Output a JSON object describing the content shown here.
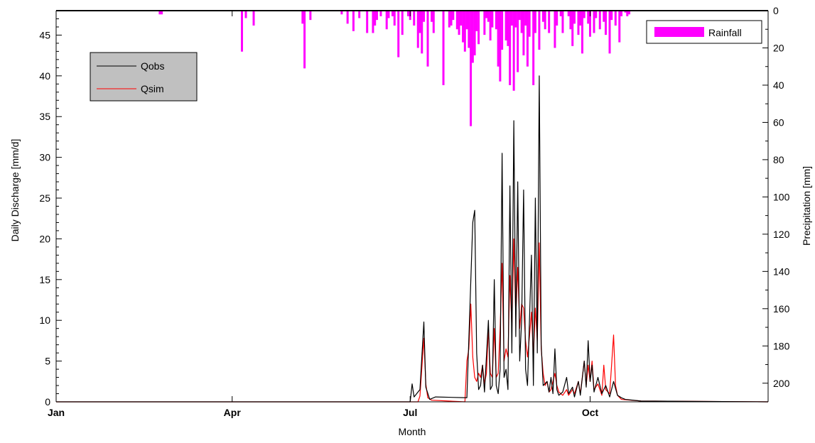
{
  "chart_data": {
    "type": "line",
    "xlabel": "Month",
    "ylabel_left": "Daily Discharge [mm/d]",
    "ylabel_right": "Precipitation [mm]",
    "x_range_days": [
      1,
      365
    ],
    "ylim_left": [
      0,
      48
    ],
    "ylim_right": [
      0,
      210
    ],
    "right_axis_inverted": true,
    "x_ticks": [
      {
        "label": "Jan",
        "day": 1
      },
      {
        "label": "Apr",
        "day": 91
      },
      {
        "label": "Jul",
        "day": 182
      },
      {
        "label": "Oct",
        "day": 274
      }
    ],
    "y_ticks_left": [
      0,
      5,
      10,
      15,
      20,
      25,
      30,
      35,
      40,
      45
    ],
    "y_ticks_right": [
      0,
      20,
      40,
      60,
      80,
      100,
      120,
      140,
      160,
      180,
      200
    ],
    "legend_left": {
      "placement": "top-left",
      "entries": [
        "Qobs",
        "Qsim"
      ]
    },
    "legend_right": {
      "placement": "top-right",
      "entries": [
        "Rainfall"
      ]
    },
    "colors": {
      "Qobs": "#000000",
      "Qsim": "#ff0000",
      "Rainfall": "#ff00ff",
      "legend_bg": "#c0c0c0"
    },
    "series": [
      {
        "name": "Qobs",
        "points": [
          [
            1,
            0
          ],
          [
            182,
            0
          ],
          [
            183,
            2.2
          ],
          [
            184,
            0.6
          ],
          [
            187,
            1.5
          ],
          [
            189,
            9.8
          ],
          [
            190,
            1.8
          ],
          [
            192,
            0.3
          ],
          [
            195,
            0.6
          ],
          [
            211,
            0.5
          ],
          [
            214,
            22
          ],
          [
            215,
            23.5
          ],
          [
            216,
            6
          ],
          [
            217,
            1.5
          ],
          [
            218,
            2
          ],
          [
            219,
            4.5
          ],
          [
            220,
            1.2
          ],
          [
            222,
            10
          ],
          [
            223,
            1.5
          ],
          [
            224,
            2
          ],
          [
            225,
            15
          ],
          [
            226,
            2
          ],
          [
            227,
            1
          ],
          [
            228,
            4
          ],
          [
            229,
            30.5
          ],
          [
            230,
            3
          ],
          [
            231,
            4
          ],
          [
            232,
            1.5
          ],
          [
            233,
            26.5
          ],
          [
            234,
            6
          ],
          [
            235,
            34.5
          ],
          [
            236,
            8
          ],
          [
            237,
            27
          ],
          [
            238,
            5
          ],
          [
            239,
            10
          ],
          [
            240,
            26
          ],
          [
            241,
            4
          ],
          [
            242,
            2
          ],
          [
            244,
            18
          ],
          [
            245,
            2
          ],
          [
            246,
            25
          ],
          [
            247,
            6
          ],
          [
            248,
            40
          ],
          [
            249,
            7
          ],
          [
            250,
            2
          ],
          [
            252,
            2.5
          ],
          [
            253,
            1.2
          ],
          [
            254,
            3
          ],
          [
            255,
            1
          ],
          [
            256,
            6.5
          ],
          [
            257,
            1.5
          ],
          [
            258,
            0.8
          ],
          [
            260,
            1.2
          ],
          [
            262,
            3
          ],
          [
            263,
            1
          ],
          [
            265,
            1.8
          ],
          [
            266,
            0.6
          ],
          [
            268,
            2.5
          ],
          [
            269,
            0.8
          ],
          [
            271,
            5
          ],
          [
            272,
            1.8
          ],
          [
            273,
            7.5
          ],
          [
            274,
            2.5
          ],
          [
            275,
            4.5
          ],
          [
            276,
            1.2
          ],
          [
            278,
            3
          ],
          [
            280,
            1
          ],
          [
            282,
            2
          ],
          [
            284,
            0.6
          ],
          [
            286,
            2.5
          ],
          [
            288,
            0.8
          ],
          [
            290,
            0.5
          ],
          [
            292,
            0.3
          ],
          [
            300,
            0.1
          ],
          [
            365,
            0
          ]
        ]
      },
      {
        "name": "Qsim",
        "points": [
          [
            1,
            0
          ],
          [
            186,
            0
          ],
          [
            187,
            0.7
          ],
          [
            189,
            7.8
          ],
          [
            190,
            2.2
          ],
          [
            191,
            0.5
          ],
          [
            193,
            0.2
          ],
          [
            210,
            0
          ],
          [
            211,
            5
          ],
          [
            212,
            6.5
          ],
          [
            213,
            12
          ],
          [
            214,
            5.5
          ],
          [
            215,
            3
          ],
          [
            216,
            2.5
          ],
          [
            217,
            3.5
          ],
          [
            218,
            3
          ],
          [
            219,
            4.5
          ],
          [
            220,
            2.2
          ],
          [
            221,
            3.5
          ],
          [
            222,
            9
          ],
          [
            223,
            3.5
          ],
          [
            224,
            3
          ],
          [
            225,
            9
          ],
          [
            226,
            3
          ],
          [
            227,
            3.5
          ],
          [
            228,
            9
          ],
          [
            229,
            17
          ],
          [
            230,
            5
          ],
          [
            231,
            6.5
          ],
          [
            232,
            5.5
          ],
          [
            233,
            15.5
          ],
          [
            234,
            9
          ],
          [
            235,
            20
          ],
          [
            236,
            10.5
          ],
          [
            237,
            16.5
          ],
          [
            238,
            9
          ],
          [
            239,
            12
          ],
          [
            240,
            11.5
          ],
          [
            241,
            7.5
          ],
          [
            242,
            5.5
          ],
          [
            243,
            8
          ],
          [
            244,
            11
          ],
          [
            245,
            5.5
          ],
          [
            246,
            11.5
          ],
          [
            247,
            7.5
          ],
          [
            248,
            19.5
          ],
          [
            249,
            6.5
          ],
          [
            250,
            3.5
          ],
          [
            251,
            2
          ],
          [
            252,
            2.5
          ],
          [
            253,
            1.2
          ],
          [
            254,
            1.5
          ],
          [
            256,
            3.5
          ],
          [
            257,
            2
          ],
          [
            258,
            1.2
          ],
          [
            260,
            0.8
          ],
          [
            262,
            1.5
          ],
          [
            263,
            0.8
          ],
          [
            265,
            1.5
          ],
          [
            266,
            1
          ],
          [
            268,
            2.5
          ],
          [
            269,
            1
          ],
          [
            271,
            5
          ],
          [
            272,
            2
          ],
          [
            273,
            4.5
          ],
          [
            274,
            2.5
          ],
          [
            275,
            5
          ],
          [
            276,
            1.5
          ],
          [
            278,
            2.2
          ],
          [
            280,
            0.8
          ],
          [
            281,
            4.5
          ],
          [
            282,
            1.5
          ],
          [
            284,
            1
          ],
          [
            286,
            8.2
          ],
          [
            287,
            2
          ],
          [
            288,
            0.8
          ],
          [
            290,
            0.3
          ],
          [
            300,
            0.1
          ],
          [
            365,
            0
          ]
        ]
      },
      {
        "name": "Rainfall",
        "type": "bar",
        "points": [
          [
            54,
            2
          ],
          [
            55,
            2
          ],
          [
            96,
            22
          ],
          [
            98,
            4
          ],
          [
            102,
            8
          ],
          [
            127,
            7
          ],
          [
            128,
            31
          ],
          [
            131,
            5
          ],
          [
            147,
            2
          ],
          [
            150,
            7
          ],
          [
            153,
            11
          ],
          [
            156,
            4
          ],
          [
            160,
            12
          ],
          [
            163,
            12
          ],
          [
            164,
            8
          ],
          [
            165,
            5
          ],
          [
            167,
            3
          ],
          [
            170,
            10
          ],
          [
            171,
            4
          ],
          [
            173,
            3
          ],
          [
            174,
            8
          ],
          [
            176,
            25
          ],
          [
            178,
            13
          ],
          [
            181,
            3
          ],
          [
            182,
            5
          ],
          [
            184,
            8
          ],
          [
            186,
            20
          ],
          [
            187,
            12
          ],
          [
            188,
            23
          ],
          [
            189,
            6
          ],
          [
            191,
            30
          ],
          [
            193,
            6
          ],
          [
            194,
            12
          ],
          [
            199,
            40
          ],
          [
            202,
            9
          ],
          [
            203,
            8
          ],
          [
            204,
            5
          ],
          [
            206,
            10
          ],
          [
            207,
            13
          ],
          [
            208,
            8
          ],
          [
            209,
            17
          ],
          [
            210,
            22
          ],
          [
            211,
            10
          ],
          [
            212,
            20
          ],
          [
            213,
            62
          ],
          [
            214,
            28
          ],
          [
            215,
            24
          ],
          [
            216,
            11
          ],
          [
            217,
            18
          ],
          [
            220,
            13
          ],
          [
            221,
            4
          ],
          [
            222,
            6
          ],
          [
            223,
            16
          ],
          [
            224,
            9
          ],
          [
            226,
            10
          ],
          [
            227,
            30
          ],
          [
            228,
            38
          ],
          [
            229,
            21
          ],
          [
            231,
            16
          ],
          [
            232,
            19
          ],
          [
            233,
            40
          ],
          [
            234,
            8
          ],
          [
            235,
            43
          ],
          [
            236,
            9
          ],
          [
            237,
            33
          ],
          [
            238,
            5
          ],
          [
            239,
            12
          ],
          [
            240,
            24
          ],
          [
            241,
            8
          ],
          [
            242,
            30
          ],
          [
            243,
            14
          ],
          [
            245,
            40
          ],
          [
            246,
            12
          ],
          [
            248,
            21
          ],
          [
            250,
            6
          ],
          [
            251,
            10
          ],
          [
            253,
            12
          ],
          [
            256,
            20
          ],
          [
            257,
            8
          ],
          [
            259,
            3
          ],
          [
            260,
            12
          ],
          [
            263,
            3
          ],
          [
            264,
            10
          ],
          [
            265,
            19
          ],
          [
            266,
            7
          ],
          [
            268,
            13
          ],
          [
            269,
            8
          ],
          [
            270,
            23
          ],
          [
            271,
            4
          ],
          [
            273,
            7
          ],
          [
            274,
            14
          ],
          [
            276,
            12
          ],
          [
            277,
            4
          ],
          [
            279,
            10
          ],
          [
            281,
            6
          ],
          [
            282,
            13
          ],
          [
            284,
            23
          ],
          [
            285,
            5
          ],
          [
            287,
            8
          ],
          [
            289,
            17
          ],
          [
            290,
            3
          ],
          [
            292,
            1
          ],
          [
            293,
            3
          ],
          [
            294,
            2
          ]
        ]
      }
    ]
  }
}
